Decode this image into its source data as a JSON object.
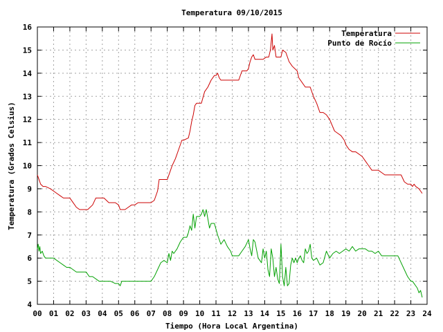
{
  "chart_data": {
    "type": "line",
    "title": "Temperatura 09/10/2015",
    "xlabel": "Tiempo (Hora Local Argentina)",
    "ylabel": "Temperatura (Grados Celsius)",
    "xlim": [
      0,
      24
    ],
    "ylim": [
      4,
      16
    ],
    "x_ticks": [
      0,
      1,
      2,
      3,
      4,
      5,
      6,
      7,
      8,
      9,
      10,
      11,
      12,
      13,
      14,
      15,
      16,
      17,
      18,
      19,
      20,
      21,
      22,
      23,
      24
    ],
    "x_tick_labels": [
      "00",
      "01",
      "02",
      "03",
      "04",
      "05",
      "06",
      "07",
      "08",
      "09",
      "10",
      "11",
      "12",
      "13",
      "14",
      "15",
      "16",
      "17",
      "18",
      "19",
      "20",
      "21",
      "22",
      "23",
      "24"
    ],
    "y_ticks": [
      4,
      5,
      6,
      7,
      8,
      9,
      10,
      11,
      12,
      13,
      14,
      15,
      16
    ],
    "y_tick_labels": [
      "4",
      "5",
      "6",
      "7",
      "8",
      "9",
      "10",
      "11",
      "12",
      "13",
      "14",
      "15",
      "16"
    ],
    "grid": true,
    "legend_position": "top-right",
    "series": [
      {
        "name": "Temperatura",
        "color": "#cc0000",
        "x": [
          0.0,
          0.1,
          0.2,
          0.35,
          0.5,
          0.8,
          1.0,
          1.2,
          1.4,
          1.6,
          2.0,
          2.2,
          2.4,
          2.6,
          3.0,
          3.1,
          3.4,
          3.6,
          4.0,
          4.1,
          4.4,
          4.8,
          5.0,
          5.1,
          5.4,
          5.6,
          5.8,
          6.0,
          6.2,
          6.5,
          7.0,
          7.2,
          7.4,
          7.5,
          7.8,
          8.0,
          8.2,
          8.3,
          8.5,
          8.7,
          8.9,
          9.0,
          9.3,
          9.4,
          9.5,
          9.6,
          9.7,
          9.8,
          10.1,
          10.3,
          10.5,
          10.7,
          10.9,
          11.0,
          11.1,
          11.2,
          11.3,
          11.5,
          11.8,
          12.0,
          12.4,
          12.6,
          12.9,
          13.0,
          13.1,
          13.2,
          13.3,
          13.4,
          13.5,
          13.7,
          13.9,
          14.1,
          14.25,
          14.35,
          14.45,
          14.5,
          14.6,
          14.7,
          14.9,
          15.0,
          15.1,
          15.3,
          15.5,
          15.7,
          16.0,
          16.1,
          16.3,
          16.5,
          16.8,
          17.0,
          17.2,
          17.4,
          17.6,
          17.8,
          18.0,
          18.3,
          18.5,
          18.7,
          18.9,
          19.0,
          19.2,
          19.4,
          19.6,
          20.0,
          20.2,
          20.4,
          20.6,
          20.8,
          21.0,
          21.2,
          21.4,
          21.8,
          22.0,
          22.4,
          22.6,
          22.8,
          23.0,
          23.1,
          23.2,
          23.3,
          23.5,
          23.6,
          23.7
        ],
        "values": [
          9.6,
          9.4,
          9.2,
          9.1,
          9.1,
          9.0,
          8.9,
          8.8,
          8.7,
          8.6,
          8.6,
          8.4,
          8.2,
          8.1,
          8.1,
          8.1,
          8.3,
          8.6,
          8.6,
          8.6,
          8.4,
          8.4,
          8.3,
          8.1,
          8.1,
          8.2,
          8.3,
          8.3,
          8.4,
          8.4,
          8.4,
          8.5,
          8.9,
          9.4,
          9.4,
          9.4,
          9.8,
          10.0,
          10.3,
          10.7,
          11.1,
          11.1,
          11.2,
          11.5,
          11.9,
          12.2,
          12.6,
          12.7,
          12.7,
          13.2,
          13.4,
          13.7,
          13.9,
          13.9,
          14.0,
          13.8,
          13.7,
          13.7,
          13.7,
          13.7,
          13.7,
          14.1,
          14.1,
          14.2,
          14.5,
          14.7,
          14.8,
          14.6,
          14.6,
          14.6,
          14.6,
          14.7,
          14.7,
          15.0,
          15.7,
          15.0,
          15.2,
          14.7,
          14.7,
          14.7,
          15.0,
          14.9,
          14.5,
          14.3,
          14.1,
          13.8,
          13.6,
          13.4,
          13.4,
          13.0,
          12.7,
          12.3,
          12.3,
          12.2,
          12.0,
          11.5,
          11.4,
          11.3,
          11.1,
          10.9,
          10.7,
          10.6,
          10.6,
          10.4,
          10.2,
          10.0,
          9.8,
          9.8,
          9.8,
          9.7,
          9.6,
          9.6,
          9.6,
          9.6,
          9.3,
          9.2,
          9.2,
          9.1,
          9.2,
          9.1,
          9.0,
          8.9,
          8.8
        ]
      },
      {
        "name": "Punto de Rocío",
        "color": "#00a000",
        "x": [
          0.0,
          0.05,
          0.1,
          0.15,
          0.2,
          0.3,
          0.4,
          0.5,
          0.8,
          1.0,
          1.4,
          1.6,
          1.8,
          2.0,
          2.2,
          2.4,
          2.6,
          2.8,
          3.0,
          3.2,
          3.4,
          3.8,
          4.0,
          4.2,
          4.5,
          4.8,
          5.0,
          5.1,
          5.2,
          5.4,
          5.6,
          6.0,
          6.2,
          6.5,
          7.0,
          7.2,
          7.4,
          7.6,
          7.8,
          8.0,
          8.1,
          8.2,
          8.3,
          8.4,
          8.6,
          8.8,
          9.0,
          9.2,
          9.3,
          9.4,
          9.5,
          9.6,
          9.7,
          9.8,
          9.9,
          10.0,
          10.1,
          10.2,
          10.3,
          10.4,
          10.5,
          10.6,
          10.7,
          10.9,
          11.1,
          11.3,
          11.5,
          11.7,
          11.9,
          12.0,
          12.2,
          12.3,
          12.4,
          12.6,
          12.8,
          13.0,
          13.1,
          13.2,
          13.3,
          13.4,
          13.6,
          13.8,
          13.9,
          14.0,
          14.1,
          14.2,
          14.3,
          14.4,
          14.5,
          14.6,
          14.7,
          14.8,
          14.9,
          15.0,
          15.1,
          15.2,
          15.3,
          15.4,
          15.5,
          15.6,
          15.7,
          15.8,
          15.9,
          16.0,
          16.1,
          16.2,
          16.3,
          16.4,
          16.5,
          16.6,
          16.7,
          16.8,
          16.9,
          17.0,
          17.2,
          17.4,
          17.6,
          17.8,
          18.0,
          18.2,
          18.4,
          18.6,
          18.8,
          19.0,
          19.2,
          19.4,
          19.6,
          19.8,
          20.0,
          20.2,
          20.4,
          20.6,
          20.8,
          21.0,
          21.2,
          21.4,
          21.6,
          21.8,
          22.0,
          22.2,
          22.4,
          22.6,
          22.8,
          23.0,
          23.1,
          23.2,
          23.3,
          23.4,
          23.5,
          23.6,
          23.7
        ],
        "values": [
          6.4,
          6.6,
          6.3,
          6.5,
          6.2,
          6.3,
          6.1,
          6.0,
          6.0,
          6.0,
          5.8,
          5.7,
          5.6,
          5.6,
          5.5,
          5.4,
          5.4,
          5.4,
          5.4,
          5.2,
          5.2,
          5.0,
          5.0,
          5.0,
          5.0,
          4.9,
          4.9,
          4.8,
          5.0,
          5.0,
          5.0,
          5.0,
          5.0,
          5.0,
          5.0,
          5.2,
          5.5,
          5.8,
          5.9,
          5.8,
          6.2,
          5.9,
          6.3,
          6.2,
          6.4,
          6.7,
          6.9,
          6.9,
          7.1,
          7.4,
          7.2,
          7.9,
          7.3,
          7.8,
          7.8,
          7.8,
          7.9,
          8.1,
          7.8,
          8.1,
          7.7,
          7.3,
          7.5,
          7.5,
          7.0,
          6.6,
          6.8,
          6.5,
          6.3,
          6.1,
          6.1,
          6.1,
          6.1,
          6.3,
          6.5,
          6.8,
          6.4,
          6.1,
          6.8,
          6.7,
          6.0,
          5.8,
          6.4,
          6.0,
          6.3,
          5.5,
          5.2,
          6.4,
          6.0,
          5.2,
          5.6,
          5.1,
          4.9,
          6.6,
          5.2,
          4.8,
          5.6,
          4.8,
          4.9,
          5.7,
          6.0,
          5.8,
          6.0,
          5.8,
          6.0,
          6.1,
          5.9,
          5.8,
          6.4,
          6.2,
          6.3,
          6.6,
          6.0,
          5.9,
          6.0,
          5.7,
          5.8,
          6.3,
          6.0,
          6.2,
          6.3,
          6.2,
          6.3,
          6.4,
          6.3,
          6.5,
          6.3,
          6.4,
          6.4,
          6.4,
          6.3,
          6.3,
          6.2,
          6.3,
          6.1,
          6.1,
          6.1,
          6.1,
          6.1,
          6.1,
          5.8,
          5.5,
          5.2,
          5.0,
          5.0,
          4.9,
          4.8,
          4.7,
          4.5,
          4.6,
          4.3
        ]
      }
    ]
  }
}
